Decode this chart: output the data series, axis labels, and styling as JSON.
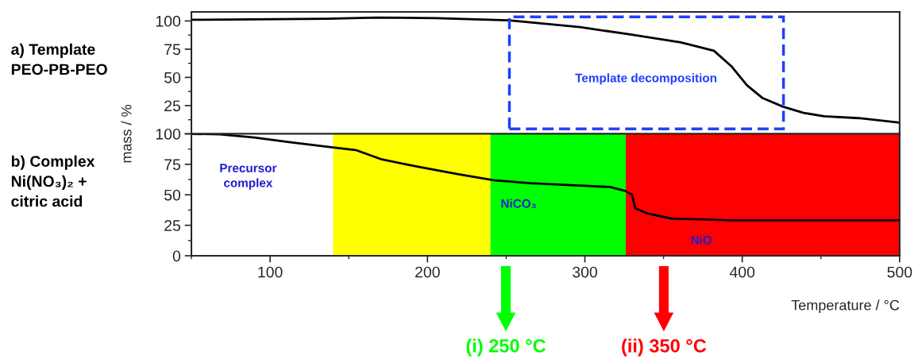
{
  "chart_data": [
    {
      "type": "line",
      "xlim": [
        50,
        500
      ],
      "xticks": [
        100,
        200,
        300,
        400,
        500
      ],
      "ylim": [
        0,
        108
      ],
      "yticks": [
        {
          "value": 0,
          "label": null
        },
        25,
        50,
        75,
        100
      ],
      "tick_labels": "y",
      "annotations": [
        "a) Template\nPEO-PB-PEO",
        "Template decomposition"
      ],
      "series": [
        {
          "color": "#000000",
          "x": [
            50,
            135.5,
            168,
            206,
            252,
            297,
            329,
            361,
            382,
            393,
            403,
            413,
            426,
            439,
            452,
            474,
            500
          ],
          "values": [
            101,
            102,
            103,
            102.5,
            100.5,
            94.5,
            88,
            81,
            73.6,
            60,
            43,
            31.6,
            24,
            18.6,
            15.6,
            13.9,
            10
          ]
        }
      ]
    },
    {
      "type": "line",
      "xlim": [
        50,
        500
      ],
      "xticks": [
        100,
        200,
        300,
        400,
        500
      ],
      "ylim": [
        0,
        100
      ],
      "yticks": [
        0,
        25,
        50,
        75,
        100
      ],
      "xlabel": "Temperature / °C",
      "ylabel": "mass / %",
      "annotations": [
        "b) Complex\nNi(NO₃)₂ +\ncitric acid",
        "Precursor\ncomplex",
        "NiCO₃",
        "NiO",
        "(i) 250 °C",
        "(ii) 350 °C"
      ],
      "bands": [
        {
          "axis": "x",
          "from": 140,
          "to": 240,
          "color": "#ffff00"
        },
        {
          "axis": "x",
          "from": 240,
          "to": 326,
          "color": "#00ff00"
        },
        {
          "axis": "x",
          "from": 326,
          "to": 500,
          "color": "#ff0000"
        }
      ],
      "series": [
        {
          "color": "#000000",
          "x": [
            50,
            68,
            90,
            113,
            139,
            155,
            171,
            194,
            219,
            242,
            265,
            297,
            316,
            326,
            330,
            332,
            339,
            355,
            394,
            500
          ],
          "values": [
            100,
            99.6,
            97,
            93,
            89,
            86.5,
            79,
            73,
            67,
            62,
            59.5,
            57.5,
            56.4,
            53,
            50,
            39,
            35,
            30.5,
            29,
            29
          ]
        }
      ]
    }
  ]
}
